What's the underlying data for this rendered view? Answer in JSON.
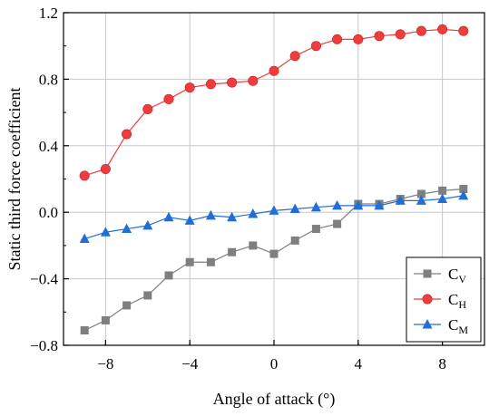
{
  "chart_data": {
    "type": "line",
    "title": "",
    "xlabel": "Angle of attack (°)",
    "ylabel": "Static third force coefficient",
    "xlim": [
      -10,
      10
    ],
    "ylim": [
      -0.8,
      1.2
    ],
    "x_ticks": [
      -8,
      -4,
      0,
      4,
      8
    ],
    "y_ticks": [
      -0.8,
      -0.4,
      0.0,
      0.4,
      0.8,
      1.2
    ],
    "x_tick_labels": [
      "−8",
      "−4",
      "0",
      "4",
      "8"
    ],
    "y_tick_labels": [
      "−0.8",
      "−0.4",
      "0.0",
      "0.4",
      "0.8",
      "1.2"
    ],
    "grid": true,
    "legend_position": "bottom-right",
    "x": [
      -9,
      -8,
      -7,
      -6,
      -5,
      -4,
      -3,
      -2,
      -1,
      0,
      1,
      2,
      3,
      4,
      5,
      6,
      7,
      8,
      9
    ],
    "series": [
      {
        "name": "C_V",
        "label_main": "C",
        "label_sub": "V",
        "color": "#7f7f7f",
        "marker": "square",
        "values": [
          -0.71,
          -0.65,
          -0.56,
          -0.5,
          -0.38,
          -0.3,
          -0.3,
          -0.24,
          -0.2,
          -0.25,
          -0.17,
          -0.1,
          -0.07,
          0.05,
          0.05,
          0.08,
          0.11,
          0.13,
          0.14
        ]
      },
      {
        "name": "C_H",
        "label_main": "C",
        "label_sub": "H",
        "color": "#f03c3c",
        "marker": "circle",
        "values": [
          0.22,
          0.26,
          0.47,
          0.62,
          0.68,
          0.75,
          0.77,
          0.78,
          0.79,
          0.85,
          0.94,
          1.0,
          1.04,
          1.04,
          1.06,
          1.07,
          1.09,
          1.1,
          1.09
        ]
      },
      {
        "name": "C_M",
        "label_main": "C",
        "label_sub": "M",
        "color": "#1f6fd6",
        "marker": "triangle",
        "values": [
          -0.16,
          -0.12,
          -0.1,
          -0.08,
          -0.03,
          -0.05,
          -0.02,
          -0.03,
          -0.01,
          0.01,
          0.02,
          0.03,
          0.04,
          0.04,
          0.04,
          0.07,
          0.07,
          0.08,
          0.1
        ]
      }
    ]
  }
}
